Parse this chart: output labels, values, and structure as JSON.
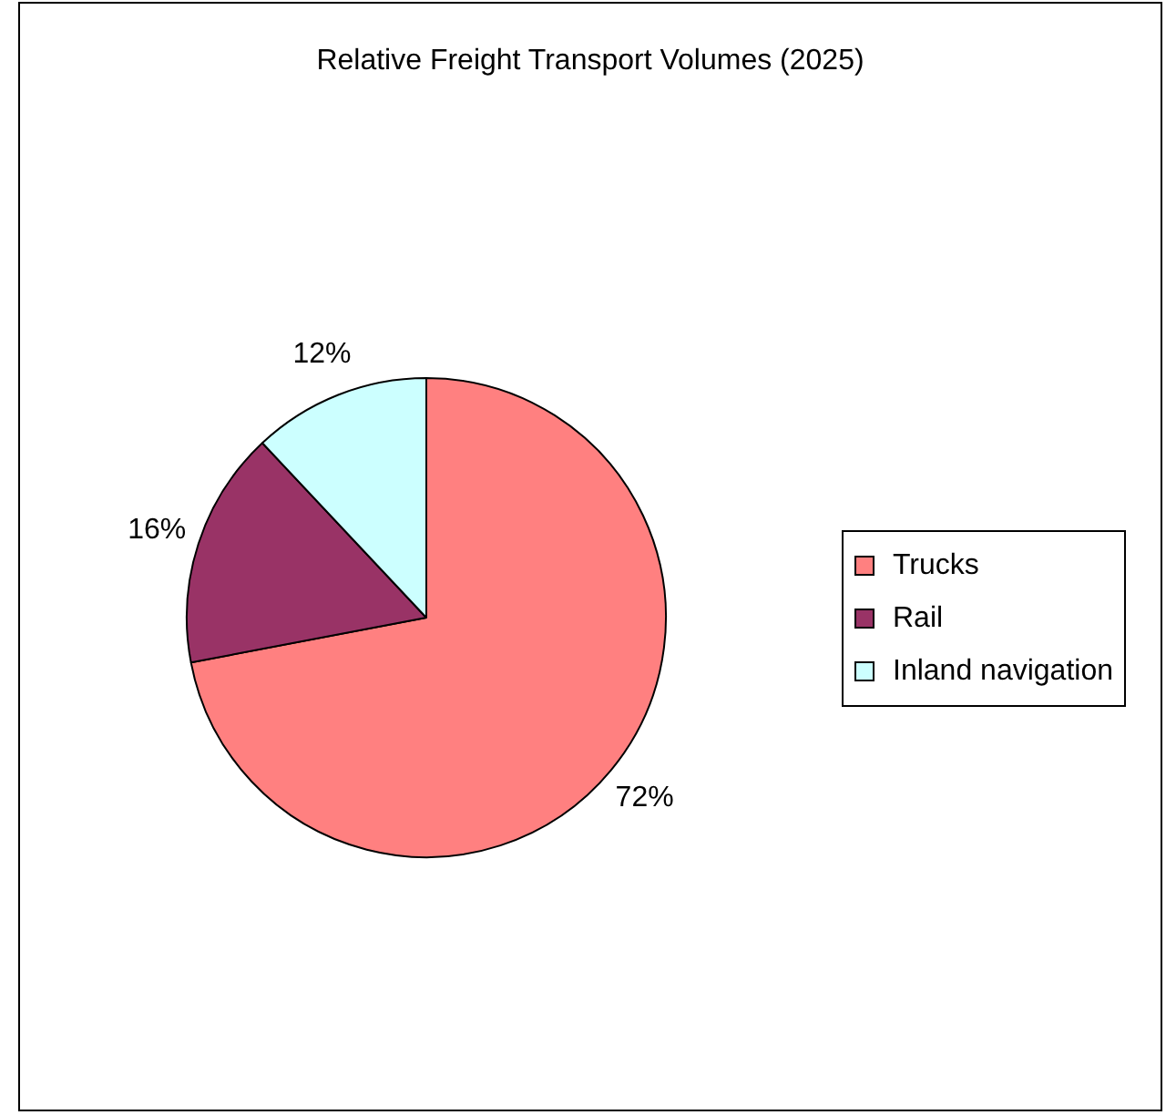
{
  "chart_data": {
    "type": "pie",
    "title": "Relative Freight Transport Volumes (2025)",
    "categories": [
      "Trucks",
      "Rail",
      "Inland navigation"
    ],
    "values": [
      72,
      16,
      12
    ],
    "colors": [
      "#ff8080",
      "#993366",
      "#ccffff"
    ],
    "value_labels": [
      "72%",
      "16%",
      "12%"
    ],
    "legend": "right"
  }
}
